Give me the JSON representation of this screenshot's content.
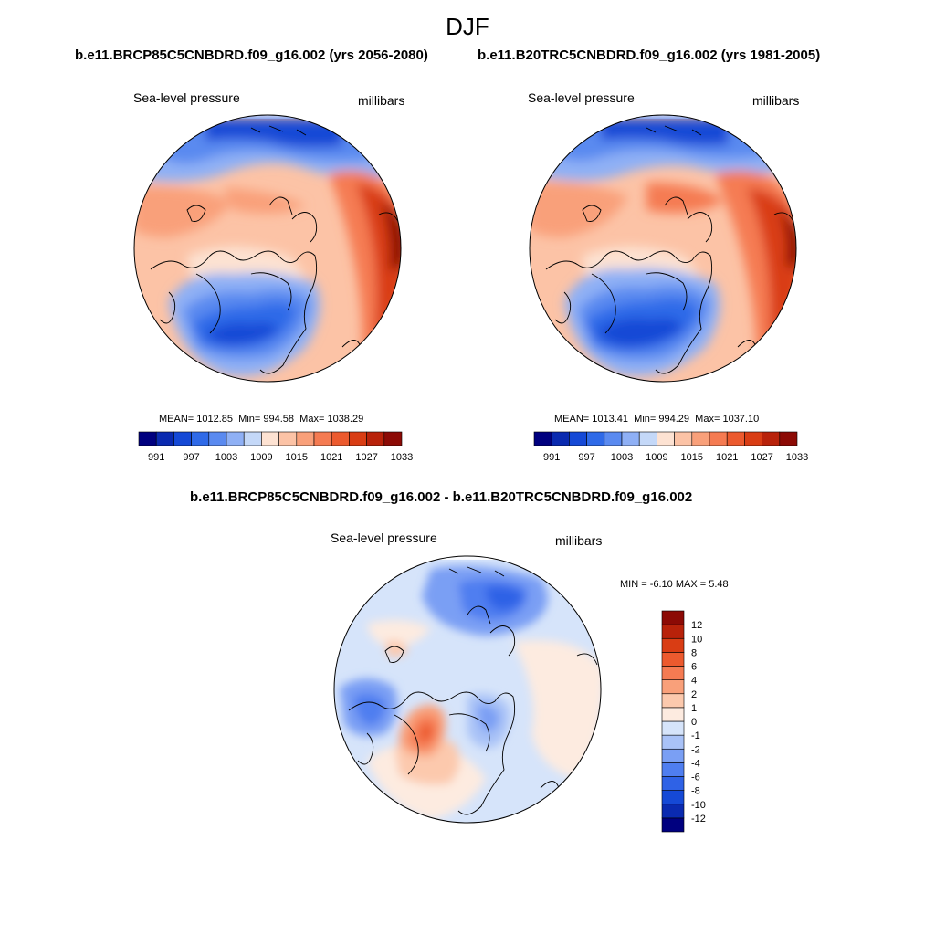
{
  "figure": {
    "season": "DJF"
  },
  "panel_left": {
    "title": "b.e11.BRCP85C5CNBDRD.f09_g16.002 (yrs 2056-2080)",
    "variable": "Sea-level pressure",
    "units": "millibars",
    "mean_label": "MEAN=",
    "mean": "1012.85",
    "min_label": "Min=",
    "min": "994.58",
    "max_label": "Max=",
    "max": "1038.29"
  },
  "panel_right": {
    "title": "b.e11.B20TRC5CNBDRD.f09_g16.002 (yrs 1981-2005)",
    "variable": "Sea-level pressure",
    "units": "millibars",
    "mean_label": "MEAN=",
    "mean": "1013.41",
    "min_label": "Min=",
    "min": "994.29",
    "max_label": "Max=",
    "max": "1037.10"
  },
  "panel_diff": {
    "title": "b.e11.BRCP85C5CNBDRD.f09_g16.002 - b.e11.B20TRC5CNBDRD.f09_g16.002",
    "variable": "Sea-level pressure",
    "units": "millibars",
    "min_label": "MIN =",
    "min": "-6.10",
    "max_label": "MAX =",
    "max": "5.48"
  },
  "colorbar_abs": {
    "colors": [
      "#00007f",
      "#0a2ab0",
      "#1549d6",
      "#2f6ae8",
      "#5a8af0",
      "#8fb0f5",
      "#c4d8f8",
      "#fde2d2",
      "#fcc3a6",
      "#f9a07a",
      "#f57b52",
      "#ec5a2e",
      "#d93d14",
      "#b8220a",
      "#8c0a05"
    ],
    "labels": [
      "991",
      "997",
      "1003",
      "1009",
      "1015",
      "1021",
      "1027",
      "1033"
    ]
  },
  "colorbar_diff": {
    "colors": [
      "#00007f",
      "#0a2ab0",
      "#1549d6",
      "#2f62e6",
      "#4f7ef0",
      "#7a9ff4",
      "#a9c2f7",
      "#d6e4fa",
      "#fdebe0",
      "#fcc9ad",
      "#f9a07a",
      "#f57b52",
      "#ec5a2e",
      "#d93d14",
      "#b8220a",
      "#8c0a05"
    ],
    "labels": [
      "12",
      "10",
      "8",
      "6",
      "4",
      "2",
      "1",
      "0",
      "-1",
      "-2",
      "-4",
      "-6",
      "-8",
      "-10",
      "-12"
    ]
  }
}
